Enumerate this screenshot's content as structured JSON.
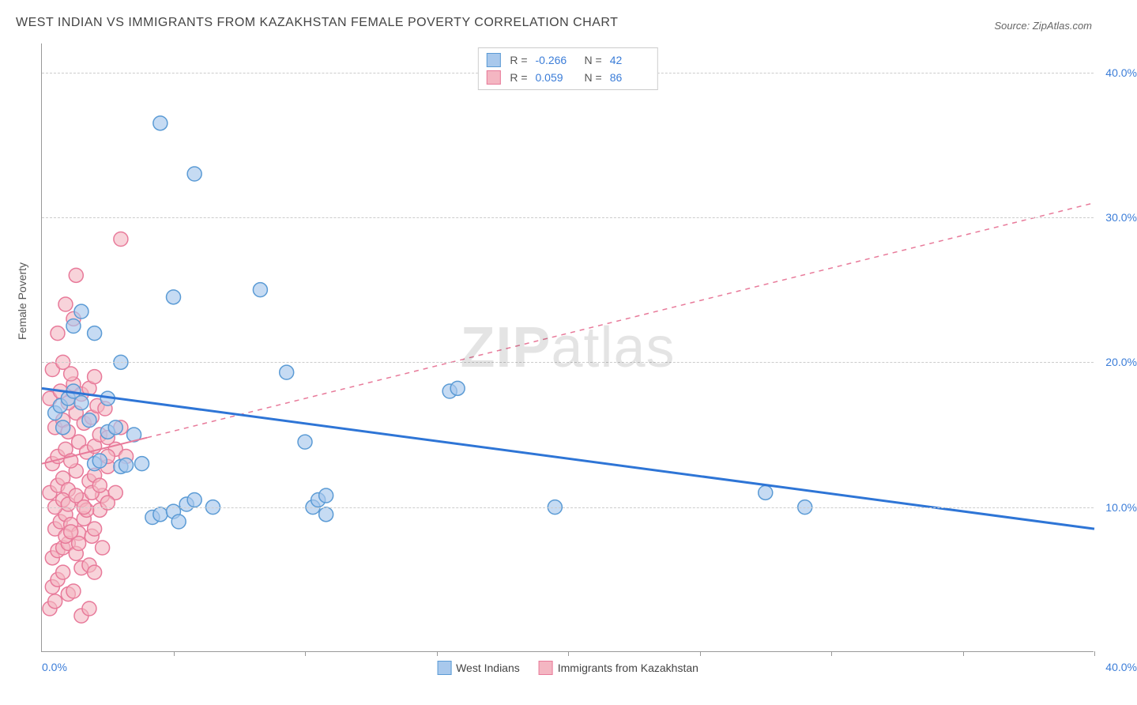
{
  "title": "WEST INDIAN VS IMMIGRANTS FROM KAZAKHSTAN FEMALE POVERTY CORRELATION CHART",
  "source": "Source: ZipAtlas.com",
  "y_axis_label": "Female Poverty",
  "watermark_1": "ZIP",
  "watermark_2": "atlas",
  "chart": {
    "type": "scatter",
    "xlim": [
      0,
      40
    ],
    "ylim": [
      0,
      42
    ],
    "y_ticks": [
      10,
      20,
      30,
      40
    ],
    "y_tick_labels": [
      "10.0%",
      "20.0%",
      "30.0%",
      "40.0%"
    ],
    "x_ticks": [
      0,
      5,
      10,
      15,
      20,
      25,
      30,
      35,
      40
    ],
    "x_tick_labels_left": "0.0%",
    "x_tick_labels_right": "40.0%",
    "grid_color": "#cccccc",
    "axis_color": "#999999",
    "background": "#ffffff",
    "marker_radius": 9,
    "marker_stroke_width": 1.5,
    "series": [
      {
        "name": "West Indians",
        "fill": "#a8c8ec",
        "stroke": "#5b9bd5",
        "opacity": 0.65,
        "R": "-0.266",
        "N": "42",
        "trend": {
          "x1": 0,
          "y1": 18.2,
          "x2": 40,
          "y2": 8.5,
          "stroke": "#2e75d6",
          "width": 3,
          "dash": "none"
        },
        "points": [
          [
            0.5,
            16.5
          ],
          [
            0.7,
            17.0
          ],
          [
            1.0,
            17.5
          ],
          [
            0.8,
            15.5
          ],
          [
            1.2,
            18.0
          ],
          [
            1.5,
            17.2
          ],
          [
            1.8,
            16.0
          ],
          [
            1.2,
            22.5
          ],
          [
            1.5,
            23.5
          ],
          [
            2.0,
            13.0
          ],
          [
            2.2,
            13.2
          ],
          [
            2.5,
            15.2
          ],
          [
            2.8,
            15.5
          ],
          [
            3.0,
            12.8
          ],
          [
            3.2,
            12.9
          ],
          [
            3.5,
            15.0
          ],
          [
            3.0,
            20.0
          ],
          [
            2.5,
            17.5
          ],
          [
            3.8,
            13.0
          ],
          [
            4.5,
            36.5
          ],
          [
            5.8,
            33.0
          ],
          [
            5.0,
            24.5
          ],
          [
            8.3,
            25.0
          ],
          [
            4.2,
            9.3
          ],
          [
            4.5,
            9.5
          ],
          [
            5.0,
            9.7
          ],
          [
            5.2,
            9.0
          ],
          [
            5.5,
            10.2
          ],
          [
            5.8,
            10.5
          ],
          [
            6.5,
            10.0
          ],
          [
            9.3,
            19.3
          ],
          [
            10.0,
            14.5
          ],
          [
            10.3,
            10.0
          ],
          [
            10.5,
            10.5
          ],
          [
            10.8,
            9.5
          ],
          [
            10.8,
            10.8
          ],
          [
            15.5,
            18.0
          ],
          [
            15.8,
            18.2
          ],
          [
            19.5,
            10.0
          ],
          [
            27.5,
            11.0
          ],
          [
            29.0,
            10.0
          ],
          [
            2.0,
            22.0
          ]
        ]
      },
      {
        "name": "Immigrants from Kazakhstan",
        "fill": "#f4b6c2",
        "stroke": "#e87a9a",
        "opacity": 0.6,
        "R": "0.059",
        "N": "86",
        "trend": {
          "x1": 0,
          "y1": 13.0,
          "x2": 40,
          "y2": 31.0,
          "stroke": "#e87a9a",
          "width": 2
        },
        "trend_solid_end_x": 4.0,
        "points": [
          [
            0.3,
            3.0
          ],
          [
            0.5,
            3.5
          ],
          [
            0.4,
            4.5
          ],
          [
            0.6,
            5.0
          ],
          [
            0.8,
            5.5
          ],
          [
            1.0,
            4.0
          ],
          [
            1.2,
            4.2
          ],
          [
            0.4,
            6.5
          ],
          [
            0.6,
            7.0
          ],
          [
            0.8,
            7.2
          ],
          [
            1.0,
            7.5
          ],
          [
            1.3,
            6.8
          ],
          [
            1.5,
            5.8
          ],
          [
            1.8,
            6.0
          ],
          [
            2.0,
            5.5
          ],
          [
            0.5,
            8.5
          ],
          [
            0.7,
            9.0
          ],
          [
            0.9,
            9.5
          ],
          [
            1.1,
            8.8
          ],
          [
            1.4,
            8.2
          ],
          [
            1.6,
            9.2
          ],
          [
            1.9,
            8.0
          ],
          [
            2.2,
            9.8
          ],
          [
            0.3,
            11.0
          ],
          [
            0.6,
            11.5
          ],
          [
            0.8,
            12.0
          ],
          [
            1.0,
            11.2
          ],
          [
            1.3,
            12.5
          ],
          [
            1.5,
            10.5
          ],
          [
            1.8,
            11.8
          ],
          [
            2.0,
            12.2
          ],
          [
            2.3,
            10.8
          ],
          [
            2.5,
            12.8
          ],
          [
            2.8,
            11.0
          ],
          [
            0.4,
            13.0
          ],
          [
            0.6,
            13.5
          ],
          [
            0.9,
            14.0
          ],
          [
            1.1,
            13.2
          ],
          [
            1.4,
            14.5
          ],
          [
            1.7,
            13.8
          ],
          [
            2.0,
            14.2
          ],
          [
            2.2,
            15.0
          ],
          [
            2.5,
            14.8
          ],
          [
            0.5,
            15.5
          ],
          [
            0.8,
            16.0
          ],
          [
            1.0,
            15.2
          ],
          [
            1.3,
            16.5
          ],
          [
            1.6,
            15.8
          ],
          [
            1.9,
            16.2
          ],
          [
            2.1,
            17.0
          ],
          [
            2.4,
            16.8
          ],
          [
            0.3,
            17.5
          ],
          [
            0.7,
            18.0
          ],
          [
            1.0,
            17.2
          ],
          [
            1.2,
            18.5
          ],
          [
            1.5,
            17.8
          ],
          [
            1.8,
            18.2
          ],
          [
            2.0,
            19.0
          ],
          [
            0.4,
            19.5
          ],
          [
            0.8,
            20.0
          ],
          [
            1.1,
            19.2
          ],
          [
            1.3,
            26.0
          ],
          [
            3.0,
            28.5
          ],
          [
            0.6,
            22.0
          ],
          [
            0.9,
            8.0
          ],
          [
            1.1,
            8.3
          ],
          [
            1.4,
            7.5
          ],
          [
            1.7,
            9.8
          ],
          [
            2.0,
            8.5
          ],
          [
            2.3,
            7.2
          ],
          [
            0.5,
            10.0
          ],
          [
            0.8,
            10.5
          ],
          [
            1.0,
            10.2
          ],
          [
            1.3,
            10.8
          ],
          [
            1.6,
            10.0
          ],
          [
            1.9,
            11.0
          ],
          [
            2.2,
            11.5
          ],
          [
            2.5,
            10.3
          ],
          [
            2.8,
            14.0
          ],
          [
            3.0,
            15.5
          ],
          [
            3.2,
            13.5
          ],
          [
            1.5,
            2.5
          ],
          [
            1.8,
            3.0
          ],
          [
            2.5,
            13.5
          ],
          [
            1.2,
            23.0
          ],
          [
            0.9,
            24.0
          ]
        ]
      }
    ]
  },
  "legend_top": {
    "r_label": "R =",
    "n_label": "N ="
  },
  "legend_bottom": {
    "series1": "West Indians",
    "series2": "Immigrants from Kazakhstan"
  }
}
